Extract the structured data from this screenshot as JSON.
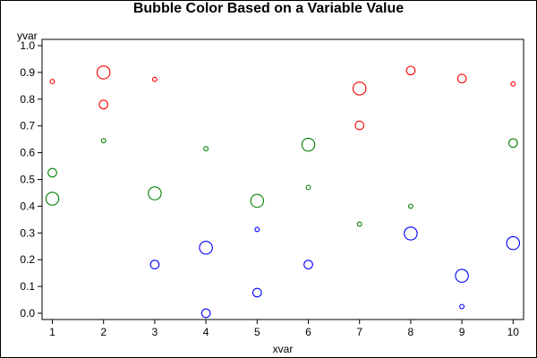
{
  "chart_data": {
    "type": "scatter",
    "title": "Bubble Color Based on a Variable Value",
    "xlabel": "xvar",
    "ylabel": "yvar",
    "xlim": [
      0.75,
      10.25
    ],
    "ylim": [
      0,
      1.0
    ],
    "xticks": [
      1,
      2,
      3,
      4,
      5,
      6,
      7,
      8,
      9,
      10
    ],
    "yticks": [
      0.0,
      0.1,
      0.2,
      0.3,
      0.4,
      0.5,
      0.6,
      0.7,
      0.8,
      0.9,
      1.0
    ],
    "ytick_labels": [
      "0.0",
      "0.1",
      "0.2",
      "0.3",
      "0.4",
      "0.5",
      "0.6",
      "0.7",
      "0.8",
      "0.9",
      "1.0"
    ],
    "grid": false,
    "legend": "none",
    "series": [
      {
        "color": "#ff0000",
        "points": [
          {
            "x": 1,
            "y": 0.866,
            "size": 2
          },
          {
            "x": 2,
            "y": 0.9,
            "size": 6
          },
          {
            "x": 2,
            "y": 0.78,
            "size": 4
          },
          {
            "x": 3,
            "y": 0.874,
            "size": 2
          },
          {
            "x": 7,
            "y": 0.84,
            "size": 6
          },
          {
            "x": 7,
            "y": 0.702,
            "size": 4
          },
          {
            "x": 8,
            "y": 0.907,
            "size": 4
          },
          {
            "x": 9,
            "y": 0.877,
            "size": 4
          },
          {
            "x": 10,
            "y": 0.857,
            "size": 2
          }
        ]
      },
      {
        "color": "#008000",
        "points": [
          {
            "x": 1,
            "y": 0.525,
            "size": 4
          },
          {
            "x": 1,
            "y": 0.428,
            "size": 6
          },
          {
            "x": 2,
            "y": 0.645,
            "size": 2
          },
          {
            "x": 3,
            "y": 0.448,
            "size": 6
          },
          {
            "x": 4,
            "y": 0.615,
            "size": 2
          },
          {
            "x": 5,
            "y": 0.42,
            "size": 6
          },
          {
            "x": 6,
            "y": 0.63,
            "size": 6
          },
          {
            "x": 6,
            "y": 0.47,
            "size": 2
          },
          {
            "x": 7,
            "y": 0.333,
            "size": 2
          },
          {
            "x": 8,
            "y": 0.4,
            "size": 2
          },
          {
            "x": 10,
            "y": 0.636,
            "size": 4
          }
        ]
      },
      {
        "color": "#0000ff",
        "points": [
          {
            "x": 3,
            "y": 0.182,
            "size": 4
          },
          {
            "x": 4,
            "y": 0.245,
            "size": 6
          },
          {
            "x": 4,
            "y": 0.0,
            "size": 4
          },
          {
            "x": 5,
            "y": 0.313,
            "size": 2
          },
          {
            "x": 5,
            "y": 0.077,
            "size": 4
          },
          {
            "x": 6,
            "y": 0.182,
            "size": 4
          },
          {
            "x": 8,
            "y": 0.298,
            "size": 6
          },
          {
            "x": 9,
            "y": 0.14,
            "size": 6
          },
          {
            "x": 9,
            "y": 0.025,
            "size": 2
          },
          {
            "x": 10,
            "y": 0.262,
            "size": 6
          }
        ]
      }
    ]
  }
}
